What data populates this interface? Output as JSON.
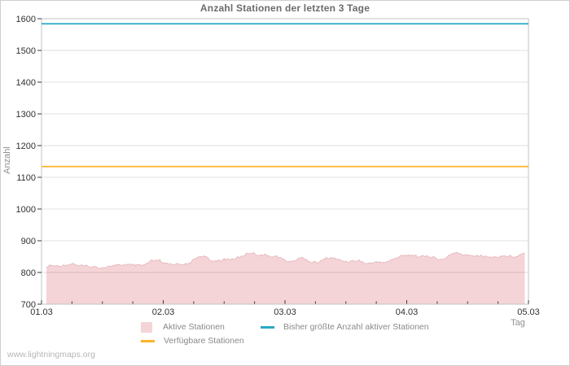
{
  "chart": {
    "watermark": "www.lightningmaps.org"
  },
  "chart_data": {
    "type": "area",
    "title": "Anzahl Stationen der letzten 3 Tage",
    "xlabel": "Tag",
    "ylabel": "Anzahl",
    "x_tick_labels": [
      "01.03",
      "02.03",
      "03.03",
      "04.03",
      "05.03"
    ],
    "x_range_days": [
      0,
      4
    ],
    "x_minor_ticks_per_day": 4,
    "ylim": [
      700,
      1600
    ],
    "y_tick_step": 100,
    "grid": "horizontal",
    "legend_position": "bottom",
    "series": [
      {
        "name": "Aktive Stationen",
        "type": "area",
        "color": "#f5d4d7",
        "edge_color": "#e7bcc1",
        "points": [
          [
            0.04,
            818
          ],
          [
            0.07,
            822
          ],
          [
            0.13,
            820
          ],
          [
            0.2,
            823
          ],
          [
            0.26,
            828
          ],
          [
            0.3,
            822
          ],
          [
            0.37,
            820
          ],
          [
            0.43,
            817
          ],
          [
            0.5,
            815
          ],
          [
            0.57,
            820
          ],
          [
            0.64,
            823
          ],
          [
            0.7,
            825
          ],
          [
            0.77,
            822
          ],
          [
            0.84,
            822
          ],
          [
            0.9,
            836
          ],
          [
            0.97,
            838
          ],
          [
            1.0,
            828
          ],
          [
            1.07,
            826
          ],
          [
            1.14,
            827
          ],
          [
            1.2,
            825
          ],
          [
            1.27,
            845
          ],
          [
            1.31,
            852
          ],
          [
            1.34,
            851
          ],
          [
            1.39,
            836
          ],
          [
            1.44,
            838
          ],
          [
            1.51,
            840
          ],
          [
            1.57,
            842
          ],
          [
            1.64,
            850
          ],
          [
            1.69,
            860
          ],
          [
            1.73,
            862
          ],
          [
            1.77,
            856
          ],
          [
            1.82,
            855
          ],
          [
            1.87,
            852
          ],
          [
            1.94,
            850
          ],
          [
            2.01,
            836
          ],
          [
            2.06,
            834
          ],
          [
            2.11,
            845
          ],
          [
            2.15,
            846
          ],
          [
            2.21,
            833
          ],
          [
            2.27,
            831
          ],
          [
            2.34,
            845
          ],
          [
            2.39,
            846
          ],
          [
            2.44,
            840
          ],
          [
            2.51,
            834
          ],
          [
            2.56,
            836
          ],
          [
            2.61,
            838
          ],
          [
            2.66,
            828
          ],
          [
            2.71,
            830
          ],
          [
            2.78,
            833
          ],
          [
            2.83,
            832
          ],
          [
            2.89,
            842
          ],
          [
            2.94,
            850
          ],
          [
            3.01,
            856
          ],
          [
            3.08,
            852
          ],
          [
            3.14,
            851
          ],
          [
            3.21,
            849
          ],
          [
            3.26,
            840
          ],
          [
            3.31,
            841
          ],
          [
            3.36,
            858
          ],
          [
            3.41,
            861
          ],
          [
            3.47,
            855
          ],
          [
            3.51,
            854
          ],
          [
            3.58,
            853
          ],
          [
            3.63,
            850
          ],
          [
            3.68,
            849
          ],
          [
            3.73,
            848
          ],
          [
            3.78,
            852
          ],
          [
            3.83,
            851
          ],
          [
            3.88,
            850
          ],
          [
            3.93,
            856
          ],
          [
            3.97,
            861
          ]
        ]
      },
      {
        "name": "Bisher größte Anzahl aktiver Stationen",
        "type": "hline",
        "color": "#2ba8c6",
        "value": 1584
      },
      {
        "name": "Verfügbare Stationen",
        "type": "hline",
        "color": "#fdb32b",
        "value": 1134
      }
    ],
    "style": {
      "grid_color": "rgba(0,0,0,0.12)",
      "border_color": "#c3c3c3",
      "tick_color": "#3a3a3a",
      "tick_label_color": "#303030",
      "title_color": "#6b6b6b",
      "legend_text_color": "#8a8a8a",
      "axis_name_color": "#8f8f8f",
      "watermark_color": "#b6b6b6"
    }
  }
}
